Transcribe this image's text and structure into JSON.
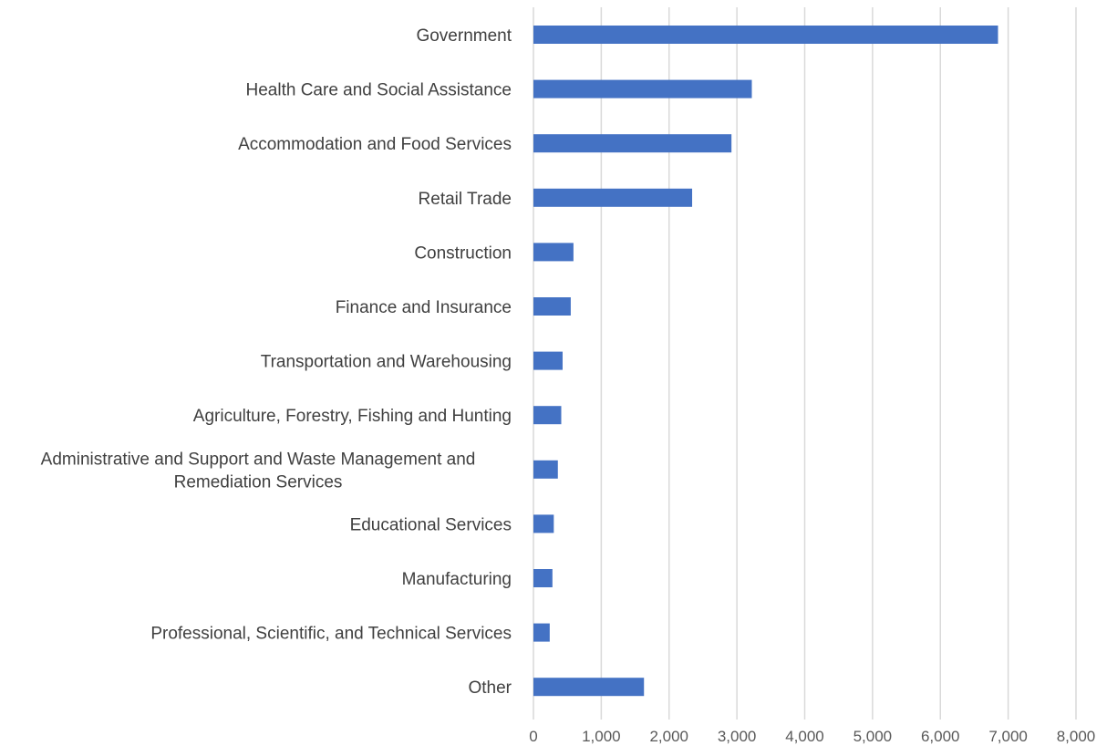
{
  "chart_data": {
    "type": "bar",
    "orientation": "horizontal",
    "categories": [
      "Government",
      "Health Care and Social Assistance",
      "Accommodation and Food Services",
      "Retail Trade",
      "Construction",
      "Finance and Insurance",
      "Transportation and Warehousing",
      "Agriculture, Forestry, Fishing and Hunting",
      [
        "Administrative and Support and Waste Management and",
        "Remediation Services"
      ],
      "Educational Services",
      "Manufacturing",
      "Professional, Scientific, and Technical Services",
      "Other"
    ],
    "values": [
      6850,
      3220,
      2920,
      2340,
      590,
      550,
      430,
      410,
      360,
      300,
      280,
      240,
      1630
    ],
    "xlim": [
      0,
      8000
    ],
    "xticks": [
      "0",
      "1,000",
      "2,000",
      "3,000",
      "4,000",
      "5,000",
      "6,000",
      "7,000",
      "8,000"
    ],
    "bar_color": "#4472c4",
    "grid": true,
    "title": "",
    "xlabel": "",
    "ylabel": ""
  }
}
